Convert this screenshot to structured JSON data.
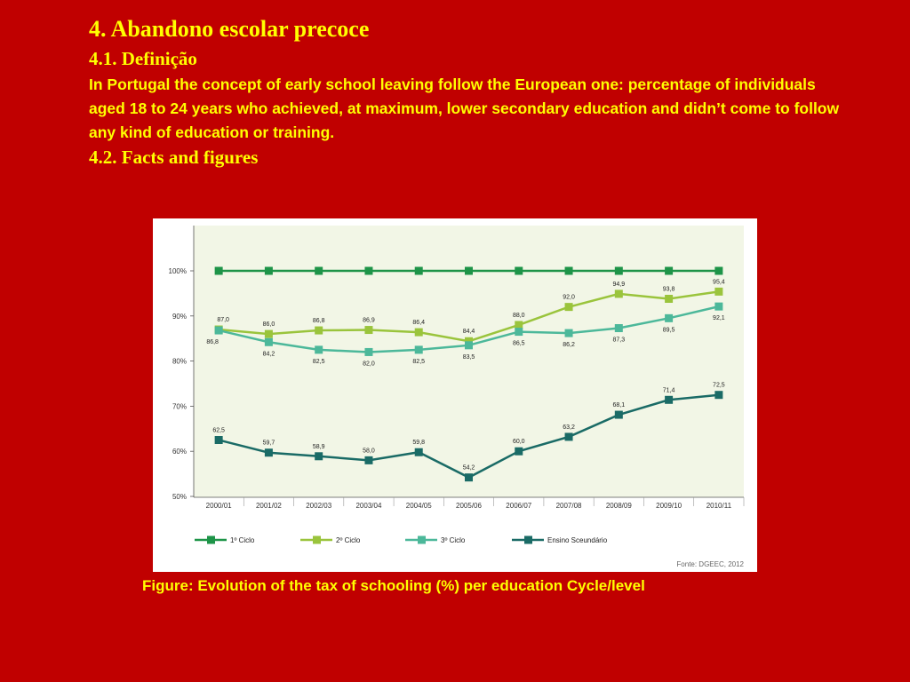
{
  "header": {
    "title": "4.  Abandono escolar precoce",
    "subtitle": "4.1. Definição",
    "paragraph": "In Portugal the concept of early school leaving follow the European one: percentage of individuals aged 18 to 24 years who achieved, at maximum, lower secondary education and didn’t come to follow any kind of education or training.",
    "section": "4.2. Facts and figures"
  },
  "caption": "Figure: Evolution of the tax of schooling (%) per education Cycle/level",
  "chart_data": {
    "type": "line",
    "categories": [
      "2000/01",
      "2001/02",
      "2002/03",
      "2003/04",
      "2004/05",
      "2005/06",
      "2006/07",
      "2007/08",
      "2008/09",
      "2009/10",
      "2010/11"
    ],
    "ylim": [
      50,
      100
    ],
    "yticks": [
      "50%",
      "60%",
      "70%",
      "80%",
      "90%",
      "100%"
    ],
    "grid": false,
    "legend_position": "bottom",
    "source": "Fonte: DGEEC, 2012",
    "series": [
      {
        "name": "1º Ciclo",
        "color": "#1e9448",
        "values": [
          100,
          100,
          100,
          100,
          100,
          100,
          100,
          100,
          100,
          100,
          100
        ],
        "labels": []
      },
      {
        "name": "2º Ciclo",
        "color": "#9ac43c",
        "values": [
          87.0,
          86.0,
          86.8,
          86.9,
          86.4,
          84.4,
          88.0,
          92.0,
          94.9,
          93.8,
          95.4
        ],
        "labels": [
          "87,0",
          "86,0",
          "86,8",
          "86,9",
          "86,4",
          "84,4",
          "88,0",
          "92,0",
          "94,9",
          "93,8",
          "95,4"
        ]
      },
      {
        "name": "3º Ciclo",
        "color": "#4cb89a",
        "values": [
          86.8,
          84.2,
          82.5,
          82.0,
          82.5,
          83.5,
          86.5,
          86.2,
          87.3,
          89.5,
          92.1
        ],
        "labels": [
          "86,8",
          "84,2",
          "82,5",
          "82,0",
          "82,5",
          "83,5",
          "86,5",
          "86,2",
          "87,3",
          "89,5",
          "92,1"
        ]
      },
      {
        "name": "Ensino Sceundário",
        "color": "#1a6b66",
        "values": [
          62.5,
          59.7,
          58.9,
          58.0,
          59.8,
          54.2,
          60.0,
          63.2,
          68.1,
          71.4,
          72.5
        ],
        "labels": [
          "62,5",
          "59,7",
          "58,9",
          "58,0",
          "59,8",
          "54,2",
          "60,0",
          "63,2",
          "68,1",
          "71,4",
          "72,5"
        ]
      }
    ]
  }
}
